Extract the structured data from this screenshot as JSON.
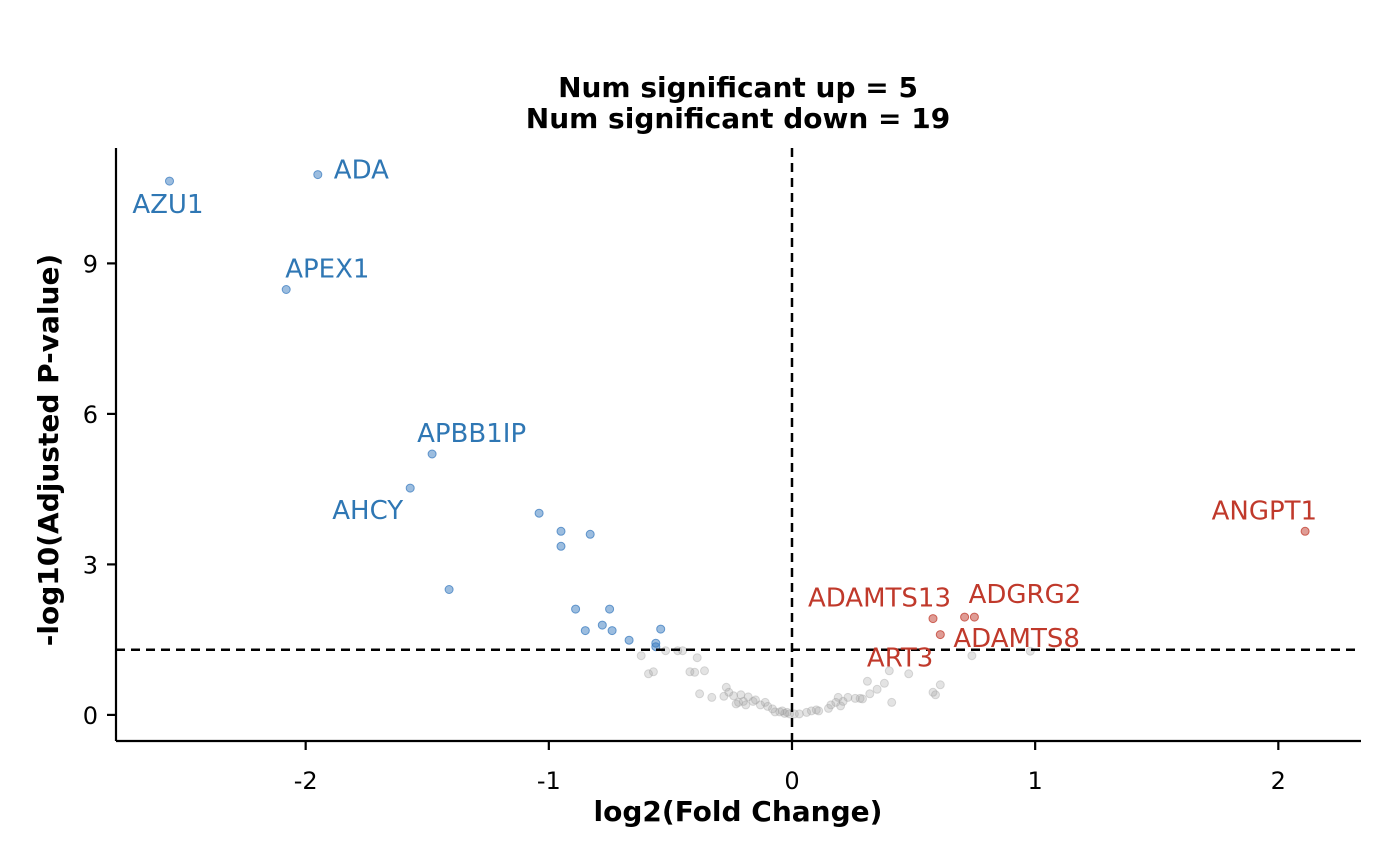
{
  "chart_data": {
    "type": "scatter",
    "title": "Num significant up = 5",
    "subtitle": "Num significant down = 19",
    "xlabel": "log2(Fold Change)",
    "ylabel": "-log10(Adjusted P-value)",
    "xlim": [
      -2.78,
      2.34
    ],
    "ylim": [
      -0.52,
      11.3
    ],
    "xticks": [
      -2,
      -1,
      0,
      1,
      2
    ],
    "yticks": [
      0,
      3,
      6,
      9
    ],
    "xtick_labels": [
      "-2",
      "-1",
      "0",
      "1",
      "2"
    ],
    "ytick_labels": [
      "0",
      "3",
      "6",
      "9"
    ],
    "thresholds": {
      "vertical_x": 0,
      "horizontal_y": 1.3
    },
    "colors": {
      "down": "#3a7bbf",
      "up": "#c0392b",
      "ns": "#9a9a9a",
      "down_label": "#2f77b4",
      "up_label": "#c0392b"
    },
    "series": [
      {
        "group": "down",
        "points": [
          {
            "x": -2.56,
            "y": 10.64
          },
          {
            "x": -1.95,
            "y": 10.77
          },
          {
            "x": -2.08,
            "y": 8.48
          },
          {
            "x": -1.48,
            "y": 5.2
          },
          {
            "x": -1.57,
            "y": 4.52
          },
          {
            "x": -1.41,
            "y": 2.5
          },
          {
            "x": -1.04,
            "y": 4.02
          },
          {
            "x": -0.95,
            "y": 3.66
          },
          {
            "x": -0.95,
            "y": 3.36
          },
          {
            "x": -0.83,
            "y": 3.6
          },
          {
            "x": -0.89,
            "y": 2.11
          },
          {
            "x": -0.75,
            "y": 2.11
          },
          {
            "x": -0.85,
            "y": 1.68
          },
          {
            "x": -0.78,
            "y": 1.79
          },
          {
            "x": -0.74,
            "y": 1.68
          },
          {
            "x": -0.67,
            "y": 1.49
          },
          {
            "x": -0.56,
            "y": 1.43
          },
          {
            "x": -0.54,
            "y": 1.71
          },
          {
            "x": -0.56,
            "y": 1.36
          }
        ]
      },
      {
        "group": "up",
        "points": [
          {
            "x": 2.11,
            "y": 3.66
          },
          {
            "x": 0.58,
            "y": 1.92
          },
          {
            "x": 0.71,
            "y": 1.95
          },
          {
            "x": 0.75,
            "y": 1.95
          },
          {
            "x": 0.61,
            "y": 1.6
          }
        ]
      },
      {
        "group": "ns",
        "points": [
          {
            "x": -0.62,
            "y": 1.18
          },
          {
            "x": -0.59,
            "y": 0.82
          },
          {
            "x": -0.57,
            "y": 0.86
          },
          {
            "x": -0.52,
            "y": 1.28
          },
          {
            "x": -0.47,
            "y": 1.28
          },
          {
            "x": -0.45,
            "y": 1.28
          },
          {
            "x": -0.42,
            "y": 0.86
          },
          {
            "x": -0.4,
            "y": 0.85
          },
          {
            "x": -0.39,
            "y": 1.14
          },
          {
            "x": -0.36,
            "y": 0.88
          },
          {
            "x": -0.38,
            "y": 0.42
          },
          {
            "x": -0.33,
            "y": 0.35
          },
          {
            "x": -0.28,
            "y": 0.37
          },
          {
            "x": -0.27,
            "y": 0.55
          },
          {
            "x": -0.26,
            "y": 0.45
          },
          {
            "x": -0.24,
            "y": 0.38
          },
          {
            "x": -0.23,
            "y": 0.22
          },
          {
            "x": -0.22,
            "y": 0.25
          },
          {
            "x": -0.21,
            "y": 0.4
          },
          {
            "x": -0.2,
            "y": 0.27
          },
          {
            "x": -0.19,
            "y": 0.2
          },
          {
            "x": -0.18,
            "y": 0.36
          },
          {
            "x": -0.16,
            "y": 0.27
          },
          {
            "x": -0.15,
            "y": 0.3
          },
          {
            "x": -0.13,
            "y": 0.2
          },
          {
            "x": -0.11,
            "y": 0.25
          },
          {
            "x": -0.1,
            "y": 0.17
          },
          {
            "x": -0.08,
            "y": 0.12
          },
          {
            "x": -0.07,
            "y": 0.06
          },
          {
            "x": -0.05,
            "y": 0.06
          },
          {
            "x": -0.04,
            "y": 0.08
          },
          {
            "x": -0.03,
            "y": 0.03
          },
          {
            "x": -0.02,
            "y": 0.05
          },
          {
            "x": -0.01,
            "y": 0.02
          },
          {
            "x": 0.01,
            "y": 0.02
          },
          {
            "x": 0.03,
            "y": 0.02
          },
          {
            "x": 0.06,
            "y": 0.05
          },
          {
            "x": 0.08,
            "y": 0.08
          },
          {
            "x": 0.1,
            "y": 0.1
          },
          {
            "x": 0.11,
            "y": 0.08
          },
          {
            "x": 0.15,
            "y": 0.13
          },
          {
            "x": 0.16,
            "y": 0.2
          },
          {
            "x": 0.18,
            "y": 0.25
          },
          {
            "x": 0.19,
            "y": 0.35
          },
          {
            "x": 0.2,
            "y": 0.18
          },
          {
            "x": 0.21,
            "y": 0.27
          },
          {
            "x": 0.23,
            "y": 0.35
          },
          {
            "x": 0.26,
            "y": 0.33
          },
          {
            "x": 0.28,
            "y": 0.33
          },
          {
            "x": 0.29,
            "y": 0.32
          },
          {
            "x": 0.31,
            "y": 0.67
          },
          {
            "x": 0.32,
            "y": 0.42
          },
          {
            "x": 0.35,
            "y": 0.51
          },
          {
            "x": 0.38,
            "y": 0.63
          },
          {
            "x": 0.4,
            "y": 0.88
          },
          {
            "x": 0.41,
            "y": 0.25
          },
          {
            "x": 0.48,
            "y": 0.82
          },
          {
            "x": 0.58,
            "y": 0.45
          },
          {
            "x": 0.59,
            "y": 0.4
          },
          {
            "x": 0.61,
            "y": 0.6
          },
          {
            "x": 0.74,
            "y": 1.18
          },
          {
            "x": 0.98,
            "y": 1.27
          }
        ]
      }
    ],
    "labels": [
      {
        "text": "AZU1",
        "group": "down",
        "x": -2.56,
        "y": 10.64,
        "anchor": "end",
        "dx": 34,
        "dy": 32
      },
      {
        "text": "ADA",
        "group": "down",
        "x": -1.95,
        "y": 10.77,
        "anchor": "start",
        "dx": 16,
        "dy": 4
      },
      {
        "text": "APEX1",
        "group": "down",
        "x": -2.08,
        "y": 8.48,
        "anchor": "start",
        "dx": -1,
        "dy": -12
      },
      {
        "text": "APBB1IP",
        "group": "down",
        "x": -1.48,
        "y": 5.2,
        "anchor": "start",
        "dx": -15,
        "dy": -12
      },
      {
        "text": "AHCY",
        "group": "down",
        "x": -1.57,
        "y": 4.52,
        "anchor": "end",
        "dx": -7,
        "dy": 31
      },
      {
        "text": "ANGPT1",
        "group": "up",
        "x": 2.11,
        "y": 3.66,
        "anchor": "end",
        "dx": 12,
        "dy": -12
      },
      {
        "text": "ADAMTS13",
        "group": "up",
        "x": 0.58,
        "y": 1.92,
        "anchor": "end",
        "dx": 18,
        "dy": -12
      },
      {
        "text": "ADGRG2",
        "group": "up",
        "x": 0.71,
        "y": 1.95,
        "anchor": "start",
        "dx": 4,
        "dy": -14
      },
      {
        "text": "ADAMTS8",
        "group": "up",
        "x": 0.75,
        "y": 1.95,
        "anchor": "start",
        "dx": -21,
        "dy": 30
      },
      {
        "text": "ART3",
        "group": "up",
        "x": 0.61,
        "y": 1.6,
        "anchor": "end",
        "dx": -7,
        "dy": 32
      }
    ]
  }
}
